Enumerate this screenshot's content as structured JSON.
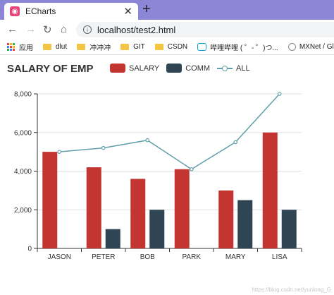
{
  "browser": {
    "tab_title": "ECharts",
    "tab_favicon": "echarts-icon",
    "close_label": "✕",
    "new_tab_label": "+",
    "url": "localhost/test2.html",
    "nav": {
      "back": "←",
      "forward": "→",
      "reload": "↻",
      "home": "⌂"
    }
  },
  "bookmarks": [
    {
      "label": "应用",
      "icon": "apps-icon"
    },
    {
      "label": "dlut",
      "icon": "folder-icon"
    },
    {
      "label": "冲冲冲",
      "icon": "folder-icon"
    },
    {
      "label": "GIT",
      "icon": "folder-icon"
    },
    {
      "label": "CSDN",
      "icon": "folder-icon"
    },
    {
      "label": "哔哩哔哩 ( ゜- ゜)つ...",
      "icon": "bilibili-icon"
    },
    {
      "label": "MXNet / Gluc",
      "icon": "mxnet-icon"
    }
  ],
  "legend": {
    "salary": "SALARY",
    "comm": "COMM",
    "all": "ALL"
  },
  "colors": {
    "salary": "#c23531",
    "comm": "#2f4554",
    "all": "#61a0a8"
  },
  "watermark": "https://blog.csdn.net/yunlong_G",
  "chart_data": {
    "type": "bar",
    "title": "SALARY OF EMP",
    "categories": [
      "JASON",
      "PETER",
      "BOB",
      "PARK",
      "MARY",
      "LISA"
    ],
    "series": [
      {
        "name": "SALARY",
        "type": "bar",
        "values": [
          5000,
          4200,
          3600,
          4100,
          3000,
          6000
        ]
      },
      {
        "name": "COMM",
        "type": "bar",
        "values": [
          0,
          1000,
          2000,
          0,
          2500,
          2000
        ]
      },
      {
        "name": "ALL",
        "type": "line",
        "values": [
          5000,
          5200,
          5600,
          4100,
          5500,
          8000
        ]
      }
    ],
    "y_ticks": [
      "0",
      "2,000",
      "4,000",
      "6,000",
      "8,000"
    ],
    "ylim": [
      0,
      8000
    ],
    "grid": "horizontal",
    "legend_position": "top"
  }
}
